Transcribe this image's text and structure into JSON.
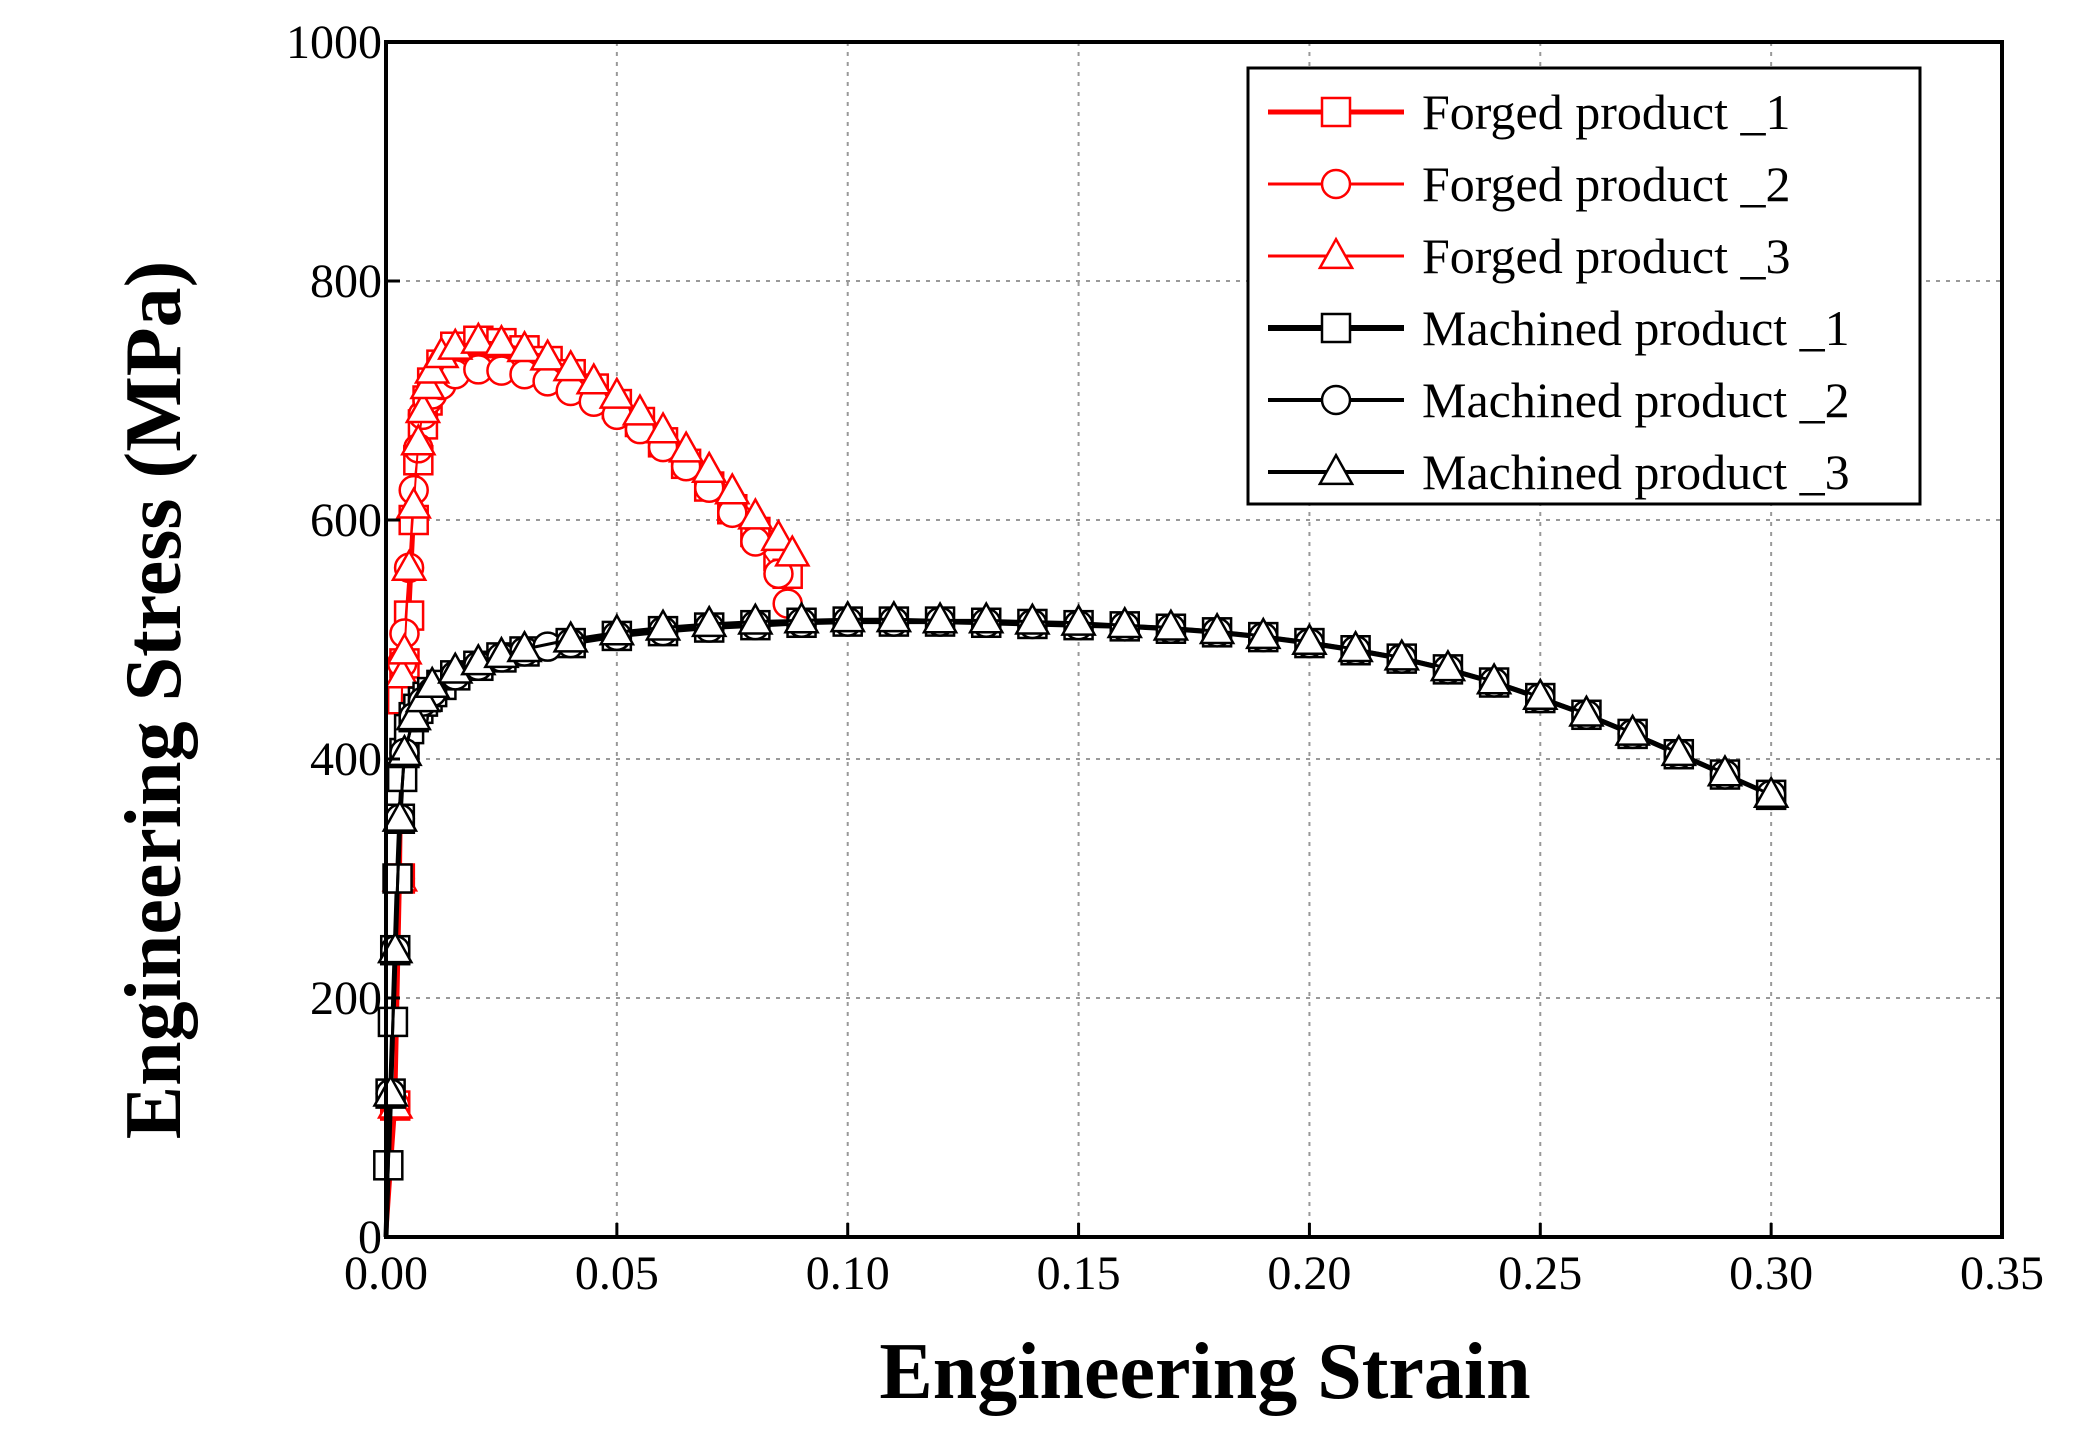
{
  "chart_data": {
    "type": "line",
    "title": "",
    "xlabel": "Engineering Strain",
    "ylabel": "Engineering Stress (MPa)",
    "xlim": [
      0.0,
      0.35
    ],
    "ylim": [
      0,
      1000
    ],
    "xticks": [
      "0.00",
      "0.05",
      "0.10",
      "0.15",
      "0.20",
      "0.25",
      "0.30",
      "0.35"
    ],
    "yticks": [
      "0",
      "200",
      "400",
      "600",
      "800",
      "1000"
    ],
    "grid": true,
    "legend_position": "top-right",
    "colors": {
      "forged": "#ff0000",
      "machined": "#000000"
    },
    "series": [
      {
        "name": "Forged product _1",
        "color": "#ff0000",
        "marker": "square",
        "line_width": 4,
        "x": [
          0.0,
          0.002,
          0.003,
          0.0035,
          0.004,
          0.005,
          0.006,
          0.007,
          0.008,
          0.009,
          0.01,
          0.012,
          0.015,
          0.02,
          0.025,
          0.03,
          0.035,
          0.04,
          0.045,
          0.05,
          0.055,
          0.06,
          0.065,
          0.07,
          0.075,
          0.08,
          0.085,
          0.087
        ],
        "y": [
          0,
          110,
          300,
          450,
          480,
          520,
          600,
          650,
          680,
          700,
          715,
          730,
          745,
          750,
          748,
          742,
          733,
          722,
          710,
          697,
          682,
          665,
          647,
          628,
          609,
          590,
          570,
          555
        ]
      },
      {
        "name": "Forged product _2",
        "color": "#ff0000",
        "marker": "circle",
        "line_width": 2,
        "x": [
          0.0,
          0.002,
          0.003,
          0.0035,
          0.004,
          0.005,
          0.006,
          0.007,
          0.008,
          0.009,
          0.01,
          0.012,
          0.015,
          0.02,
          0.025,
          0.03,
          0.035,
          0.04,
          0.045,
          0.05,
          0.055,
          0.06,
          0.065,
          0.07,
          0.075,
          0.08,
          0.085,
          0.087
        ],
        "y": [
          0,
          110,
          300,
          480,
          505,
          560,
          625,
          660,
          688,
          700,
          705,
          713,
          722,
          726,
          725,
          722,
          716,
          708,
          699,
          688,
          676,
          661,
          645,
          627,
          606,
          582,
          555,
          530
        ]
      },
      {
        "name": "Forged product _3",
        "color": "#ff0000",
        "marker": "triangle",
        "line_width": 2,
        "x": [
          0.0,
          0.002,
          0.003,
          0.0035,
          0.004,
          0.005,
          0.006,
          0.007,
          0.008,
          0.009,
          0.01,
          0.012,
          0.015,
          0.02,
          0.025,
          0.03,
          0.035,
          0.04,
          0.045,
          0.05,
          0.055,
          0.06,
          0.065,
          0.07,
          0.075,
          0.08,
          0.085,
          0.088
        ],
        "y": [
          0,
          110,
          300,
          470,
          490,
          560,
          612,
          665,
          692,
          712,
          725,
          738,
          745,
          750,
          748,
          743,
          736,
          727,
          716,
          704,
          690,
          675,
          659,
          642,
          624,
          603,
          585,
          572
        ]
      },
      {
        "name": "Machined product _1",
        "color": "#000000",
        "marker": "square",
        "line_width": 5,
        "x": [
          0.0,
          0.0005,
          0.001,
          0.0015,
          0.002,
          0.0025,
          0.003,
          0.0035,
          0.004,
          0.005,
          0.006,
          0.007,
          0.008,
          0.009,
          0.01,
          0.012,
          0.015,
          0.02,
          0.025,
          0.03,
          0.04,
          0.05,
          0.06,
          0.07,
          0.08,
          0.09,
          0.1,
          0.11,
          0.12,
          0.13,
          0.14,
          0.15,
          0.16,
          0.17,
          0.18,
          0.19,
          0.2,
          0.21,
          0.22,
          0.23,
          0.24,
          0.25,
          0.26,
          0.27,
          0.28,
          0.29,
          0.3
        ],
        "y": [
          0,
          60,
          120,
          180,
          240,
          300,
          350,
          385,
          405,
          425,
          435,
          442,
          448,
          452,
          456,
          462,
          470,
          478,
          485,
          490,
          497,
          503,
          507,
          510,
          512,
          514,
          515,
          515,
          515,
          514,
          513,
          512,
          511,
          509,
          506,
          502,
          497,
          491,
          484,
          475,
          464,
          451,
          437,
          421,
          404,
          387,
          370
        ]
      },
      {
        "name": "Machined product _2",
        "color": "#000000",
        "marker": "circle",
        "line_width": 3,
        "x": [
          0.0,
          0.001,
          0.002,
          0.003,
          0.004,
          0.006,
          0.008,
          0.01,
          0.015,
          0.02,
          0.025,
          0.03,
          0.035,
          0.04,
          0.05,
          0.06,
          0.07,
          0.08,
          0.09,
          0.1,
          0.11,
          0.12,
          0.13,
          0.14,
          0.15,
          0.16,
          0.17,
          0.18,
          0.19,
          0.2,
          0.21,
          0.22,
          0.23,
          0.24,
          0.25,
          0.26,
          0.27,
          0.28,
          0.29,
          0.3
        ],
        "y": [
          0,
          120,
          240,
          350,
          405,
          435,
          448,
          456,
          470,
          478,
          485,
          490,
          494,
          497,
          503,
          507,
          510,
          512,
          514,
          515,
          515,
          515,
          514,
          513,
          512,
          511,
          509,
          506,
          502,
          497,
          491,
          484,
          475,
          464,
          451,
          437,
          421,
          404,
          387,
          370
        ]
      },
      {
        "name": "Machined product _3",
        "color": "#000000",
        "marker": "triangle",
        "line_width": 3,
        "x": [
          0.0,
          0.001,
          0.002,
          0.003,
          0.004,
          0.006,
          0.008,
          0.01,
          0.015,
          0.02,
          0.025,
          0.03,
          0.04,
          0.05,
          0.06,
          0.07,
          0.08,
          0.09,
          0.1,
          0.11,
          0.12,
          0.13,
          0.14,
          0.15,
          0.16,
          0.17,
          0.18,
          0.19,
          0.2,
          0.21,
          0.22,
          0.23,
          0.24,
          0.25,
          0.26,
          0.27,
          0.28,
          0.29,
          0.3
        ],
        "y": [
          0,
          120,
          240,
          350,
          405,
          435,
          450,
          462,
          474,
          481,
          487,
          492,
          500,
          506,
          510,
          513,
          515,
          516,
          517,
          517,
          516,
          516,
          515,
          514,
          512,
          510,
          507,
          503,
          498,
          492,
          485,
          476,
          465,
          452,
          438,
          422,
          405,
          388,
          370
        ]
      }
    ]
  }
}
